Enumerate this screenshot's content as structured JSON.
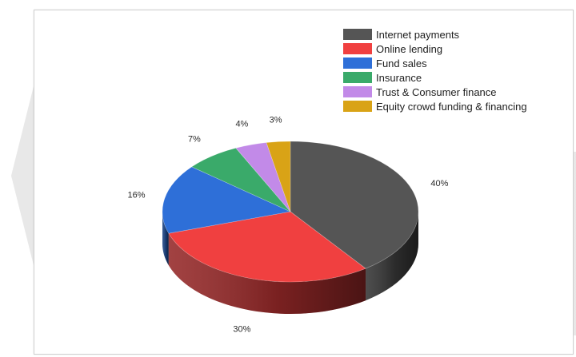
{
  "chart_data": {
    "type": "pie",
    "labels": [
      "Internet payments",
      "Online lending",
      "Fund sales",
      "Insurance",
      "Trust & Consumer finance",
      "Equity crowd funding & financing"
    ],
    "values": [
      40,
      30,
      16,
      7,
      4,
      3
    ],
    "value_labels": [
      "40%",
      "30%",
      "16%",
      "7%",
      "4%",
      "3%"
    ],
    "colors": [
      "#555555",
      "#f04040",
      "#2e6fd8",
      "#3aaa6a",
      "#c28ae8",
      "#d9a316"
    ],
    "style": "3d",
    "legend_position": "top-right"
  }
}
